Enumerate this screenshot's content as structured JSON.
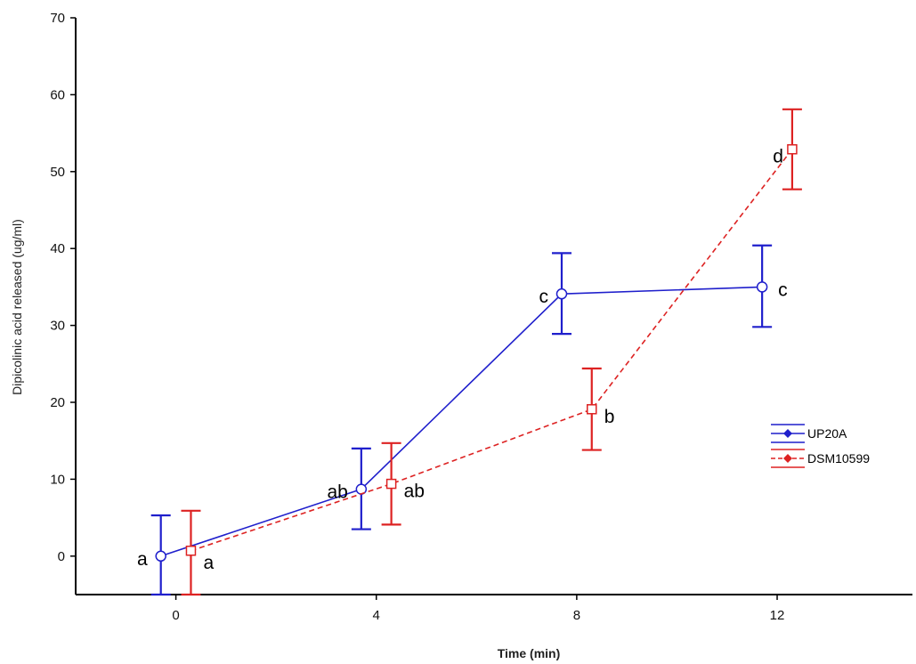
{
  "chart_data": {
    "type": "line",
    "title": "",
    "xlabel": "Time (min)",
    "ylabel": "Dipicolinic acid released (ug/ml)",
    "xlim": [
      -2,
      14.7
    ],
    "ylim": [
      -5,
      70
    ],
    "xticks": [
      0,
      4,
      8,
      12
    ],
    "yticks": [
      0,
      10,
      20,
      30,
      40,
      50,
      60,
      70
    ],
    "grid": false,
    "legend_position": "right",
    "series": [
      {
        "name": "UP20A",
        "color": "#1f1fcc",
        "line_style": "solid",
        "marker": "circle",
        "points": [
          {
            "x": -0.3,
            "y": 0.0,
            "err_low": -5,
            "err_high": 5.3,
            "label": "a"
          },
          {
            "x": 3.7,
            "y": 8.7,
            "err_low": 3.5,
            "err_high": 14.0,
            "label": "ab"
          },
          {
            "x": 7.7,
            "y": 34.1,
            "err_low": 28.9,
            "err_high": 39.4,
            "label": "c"
          },
          {
            "x": 11.7,
            "y": 35.0,
            "err_low": 29.8,
            "err_high": 40.4,
            "label": "c"
          }
        ]
      },
      {
        "name": "DSM10599",
        "color": "#dd2222",
        "line_style": "dashed",
        "marker": "square",
        "points": [
          {
            "x": 0.3,
            "y": 0.7,
            "err_low": -5,
            "err_high": 5.9,
            "label": "a"
          },
          {
            "x": 4.3,
            "y": 9.4,
            "err_low": 4.1,
            "err_high": 14.7,
            "label": "ab"
          },
          {
            "x": 8.3,
            "y": 19.1,
            "err_low": 13.8,
            "err_high": 24.4,
            "label": "b"
          },
          {
            "x": 12.3,
            "y": 52.9,
            "err_low": 47.7,
            "err_high": 58.1,
            "label": "d"
          }
        ]
      }
    ]
  }
}
